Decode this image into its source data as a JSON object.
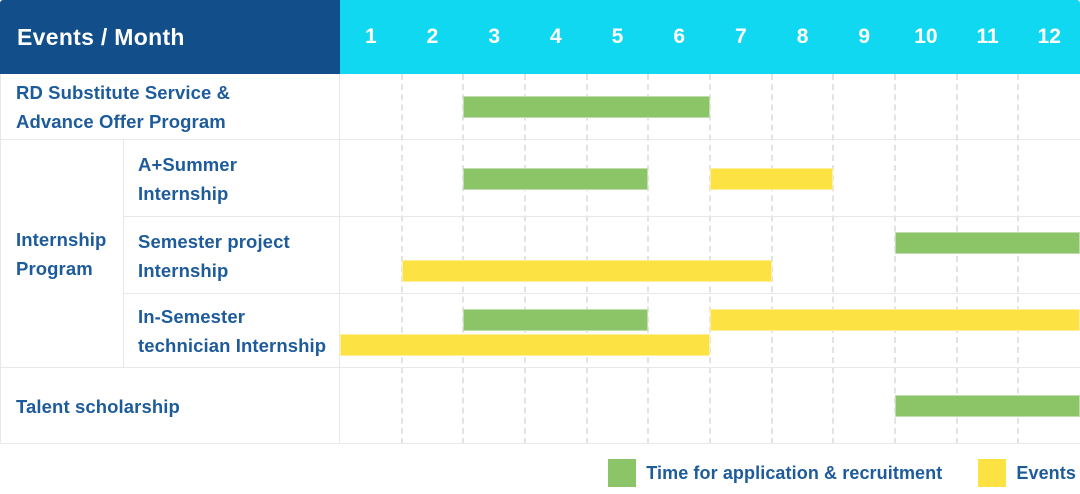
{
  "colors": {
    "header_bg": "#114e8a",
    "months_bg": "#0fd8f0",
    "recruitment": "#8cc468",
    "events": "#fde244",
    "label_text": "#1d5b9b",
    "grid_line": "#e8e8e8"
  },
  "header": {
    "title": "Events / Month",
    "months": [
      "1",
      "2",
      "3",
      "4",
      "5",
      "6",
      "7",
      "8",
      "9",
      "10",
      "11",
      "12"
    ]
  },
  "body": {
    "group": {
      "id": "internship-program",
      "label_lines": [
        "Internship",
        "Program"
      ],
      "spans_rows": [
        1,
        3
      ]
    },
    "rows": [
      {
        "id": "rd-substitute-service",
        "type": "full",
        "label_lines": [
          "RD Substitute Service &",
          "Advance Offer Program"
        ],
        "bars": [
          {
            "kind": "recruitment",
            "start_month": 3,
            "end_month": 6,
            "line": "center"
          }
        ]
      },
      {
        "id": "a-summer-internship",
        "type": "sub",
        "label_lines": [
          "A+Summer",
          "Internship"
        ],
        "bars": [
          {
            "kind": "recruitment",
            "start_month": 3,
            "end_month": 5,
            "line": "center"
          },
          {
            "kind": "events",
            "start_month": 7,
            "end_month": 8,
            "line": "center"
          }
        ]
      },
      {
        "id": "semester-project-internship",
        "type": "sub",
        "label_lines": [
          "Semester project",
          "Internship"
        ],
        "bars": [
          {
            "kind": "recruitment",
            "start_month": 10,
            "end_month": 12,
            "line": "top"
          },
          {
            "kind": "events",
            "start_month": 2,
            "end_month": 7,
            "line": "bottom"
          }
        ]
      },
      {
        "id": "in-semester-technician-internship",
        "type": "sub",
        "label_lines": [
          "In-Semester",
          "technician Internship"
        ],
        "bars": [
          {
            "kind": "recruitment",
            "start_month": 3,
            "end_month": 5,
            "line": "top"
          },
          {
            "kind": "events",
            "start_month": 7,
            "end_month": 12,
            "line": "top"
          },
          {
            "kind": "events",
            "start_month": 1,
            "end_month": 6,
            "line": "bottom"
          }
        ]
      },
      {
        "id": "talent-scholarship",
        "type": "full",
        "label_lines": [
          "Talent scholarship"
        ],
        "bars": [
          {
            "kind": "recruitment",
            "start_month": 10,
            "end_month": 12,
            "line": "center"
          }
        ]
      }
    ]
  },
  "legend": {
    "items": [
      {
        "kind": "recruitment",
        "label": "Time for application & recruitment"
      },
      {
        "kind": "events",
        "label": "Events"
      }
    ]
  },
  "chart_data": {
    "type": "bar",
    "subtype": "gantt",
    "title": "Events / Month",
    "x_unit": "month",
    "x_range": [
      1,
      12
    ],
    "x_ticks": [
      "1",
      "2",
      "3",
      "4",
      "5",
      "6",
      "7",
      "8",
      "9",
      "10",
      "11",
      "12"
    ],
    "categories": [
      "RD Substitute Service & Advance Offer Program",
      "A+Summer Internship (Internship Program)",
      "Semester project Internship (Internship Program)",
      "In-Semester technician Internship (Internship Program)",
      "Talent scholarship"
    ],
    "series": [
      {
        "name": "Time for application & recruitment",
        "color": "#8cc468",
        "spans": [
          {
            "row": "RD Substitute Service & Advance Offer Program",
            "start_month": 3,
            "end_month": 6
          },
          {
            "row": "A+Summer Internship",
            "start_month": 3,
            "end_month": 5
          },
          {
            "row": "Semester project Internship",
            "start_month": 10,
            "end_month": 12
          },
          {
            "row": "In-Semester technician Internship",
            "start_month": 3,
            "end_month": 5
          },
          {
            "row": "Talent scholarship",
            "start_month": 10,
            "end_month": 12
          }
        ]
      },
      {
        "name": "Events",
        "color": "#fde244",
        "spans": [
          {
            "row": "A+Summer Internship",
            "start_month": 7,
            "end_month": 8
          },
          {
            "row": "Semester project Internship",
            "start_month": 2,
            "end_month": 7
          },
          {
            "row": "In-Semester technician Internship",
            "start_month": 7,
            "end_month": 12
          },
          {
            "row": "In-Semester technician Internship",
            "start_month": 1,
            "end_month": 6
          }
        ]
      }
    ],
    "legend_position": "bottom-right",
    "grid": "dashed-vertical-month-lines"
  }
}
